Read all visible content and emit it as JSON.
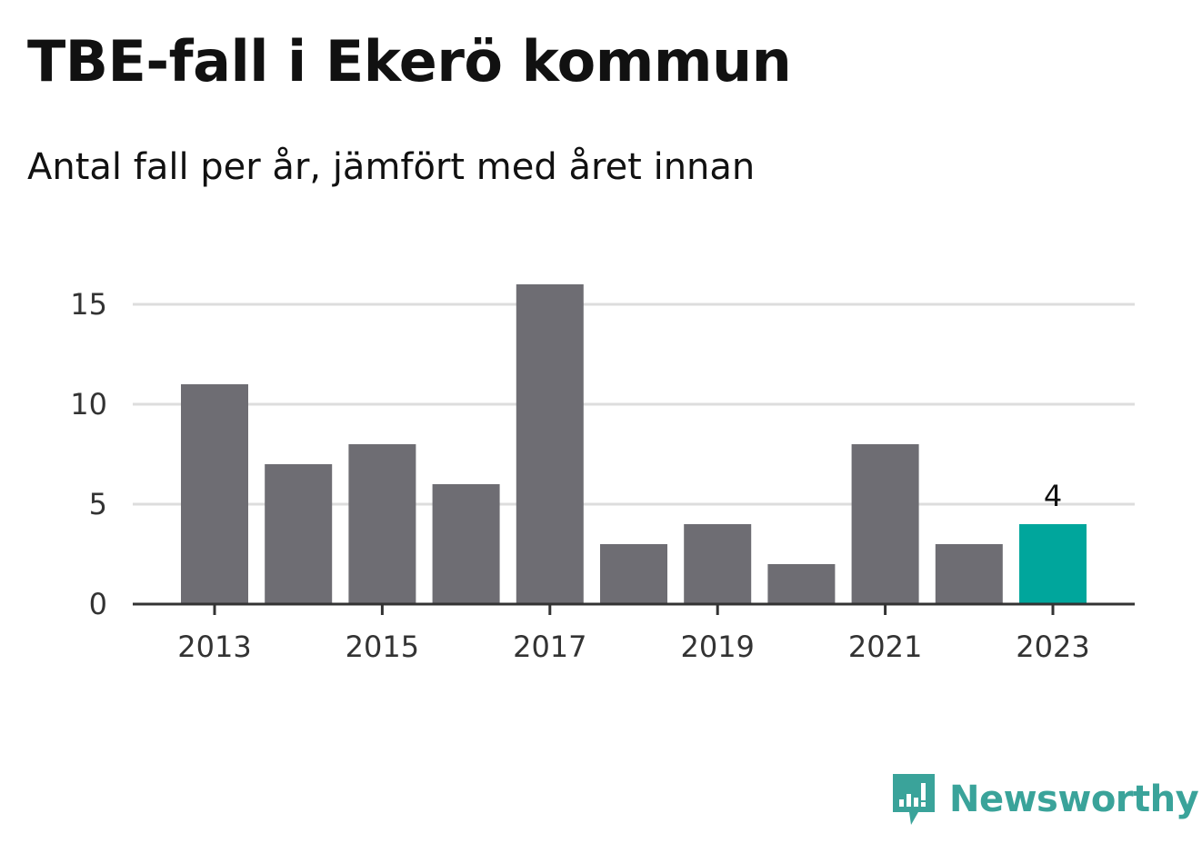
{
  "title": "TBE-fall i Ekerö kommun",
  "subtitle": "Antal fall per år, jämfört med året innan",
  "brand": {
    "name": "Newsworthy",
    "logo_icon": "newsworthy-logo-icon",
    "color": "#3aa39a"
  },
  "colors": {
    "bar": "#6e6d73",
    "highlight": "#00a69c",
    "grid": "#dddddd",
    "axis": "#333333"
  },
  "chart_data": {
    "type": "bar",
    "categories": [
      "2013",
      "2014",
      "2015",
      "2016",
      "2017",
      "2018",
      "2019",
      "2020",
      "2021",
      "2022",
      "2023"
    ],
    "values": [
      11,
      7,
      8,
      6,
      16,
      3,
      4,
      2,
      8,
      3,
      4
    ],
    "x_tick_labels": [
      "2013",
      "2015",
      "2017",
      "2019",
      "2021",
      "2023"
    ],
    "y_ticks": [
      0,
      5,
      10,
      15
    ],
    "ylim": [
      0,
      16
    ],
    "grid": true,
    "highlight_index": 10,
    "data_labels": [
      {
        "index": 10,
        "text": "4"
      }
    ],
    "title": "TBE-fall i Ekerö kommun",
    "xlabel": "",
    "ylabel": ""
  }
}
